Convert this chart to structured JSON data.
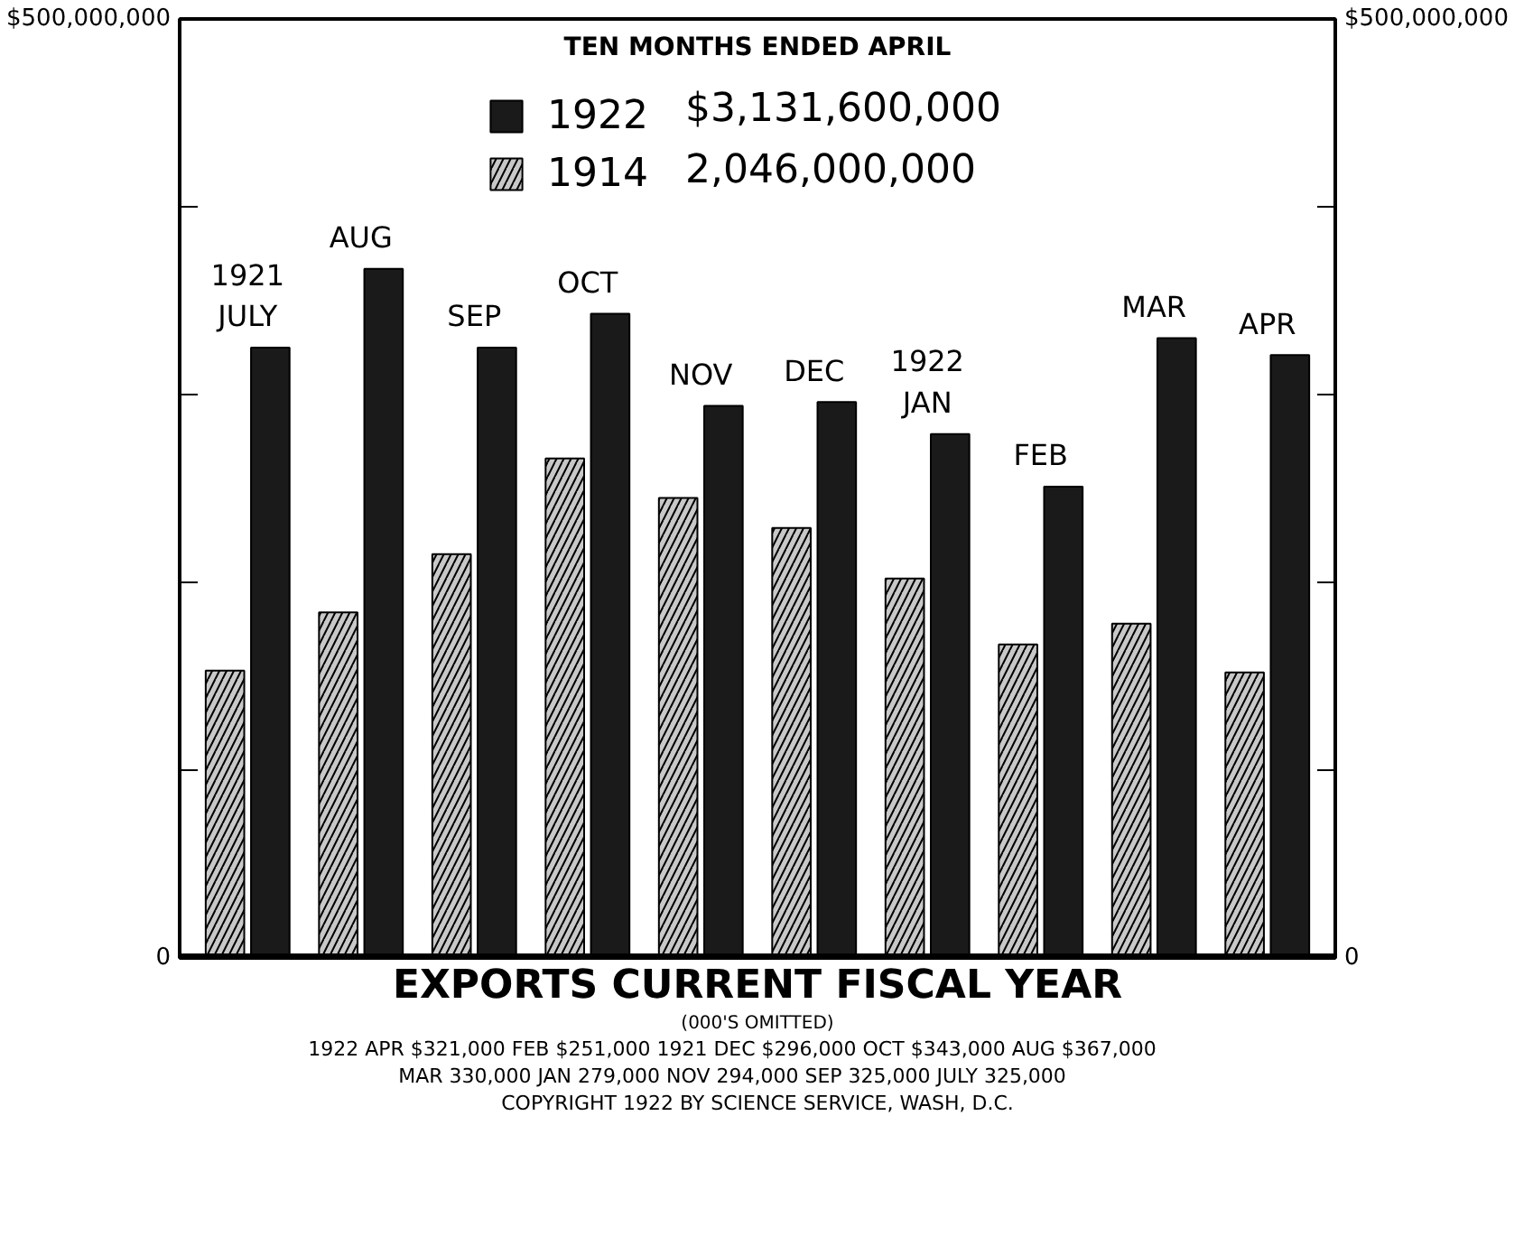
{
  "chart_data": {
    "type": "bar",
    "title": "EXPORTS CURRENT FISCAL YEAR",
    "subtitle": "(000'S OMITTED)",
    "legend_title": "TEN MONTHS ENDED APRIL",
    "categories": [
      "1921\nJULY",
      "AUG",
      "SEP",
      "OCT",
      "NOV",
      "DEC",
      "1922\nJAN",
      "FEB",
      "MAR",
      "APR"
    ],
    "series": [
      {
        "name": "1914",
        "color": "#c8c8c8",
        "values": [
          153000000,
          184000000,
          215000000,
          266000000,
          245000000,
          229000000,
          202000000,
          167000000,
          178000000,
          152000000
        ]
      },
      {
        "name": "1922",
        "color": "#1a1a1a",
        "values": [
          325000000,
          367000000,
          325000000,
          343000000,
          294000000,
          296000000,
          279000000,
          251000000,
          330000000,
          321000000
        ]
      }
    ],
    "ylim": [
      0,
      500000000
    ],
    "yticks": [
      0,
      {
        "value": 100000000,
        "label": null
      },
      {
        "value": 200000000,
        "label": null
      },
      {
        "value": 300000000,
        "label": null
      },
      {
        "value": 400000000,
        "label": null
      },
      {
        "value": 500000000,
        "label": "$500,000,000"
      }
    ],
    "y2lim": [
      0,
      500000000
    ],
    "y2ticks": [
      0,
      {
        "value": 100000000,
        "label": null
      },
      {
        "value": 200000000,
        "label": null
      },
      {
        "value": 300000000,
        "label": null
      },
      {
        "value": 400000000,
        "label": null
      },
      {
        "value": 500000000,
        "label": "$500,000,000"
      }
    ],
    "legend": "top",
    "annotations": [
      "$3,131,600,000",
      "2,046,000,000",
      "1922 APR $321,000   FEB $251,000   1921 DEC $296,000   OCT $343,000   AUG $367,000",
      "MAR 330,000   JAN 279,000   NOV 294,000   SEP 325,000   JULY 325,000",
      "COPYRIGHT 1922 BY SCIENCE SERVICE, WASH, D.C."
    ]
  }
}
